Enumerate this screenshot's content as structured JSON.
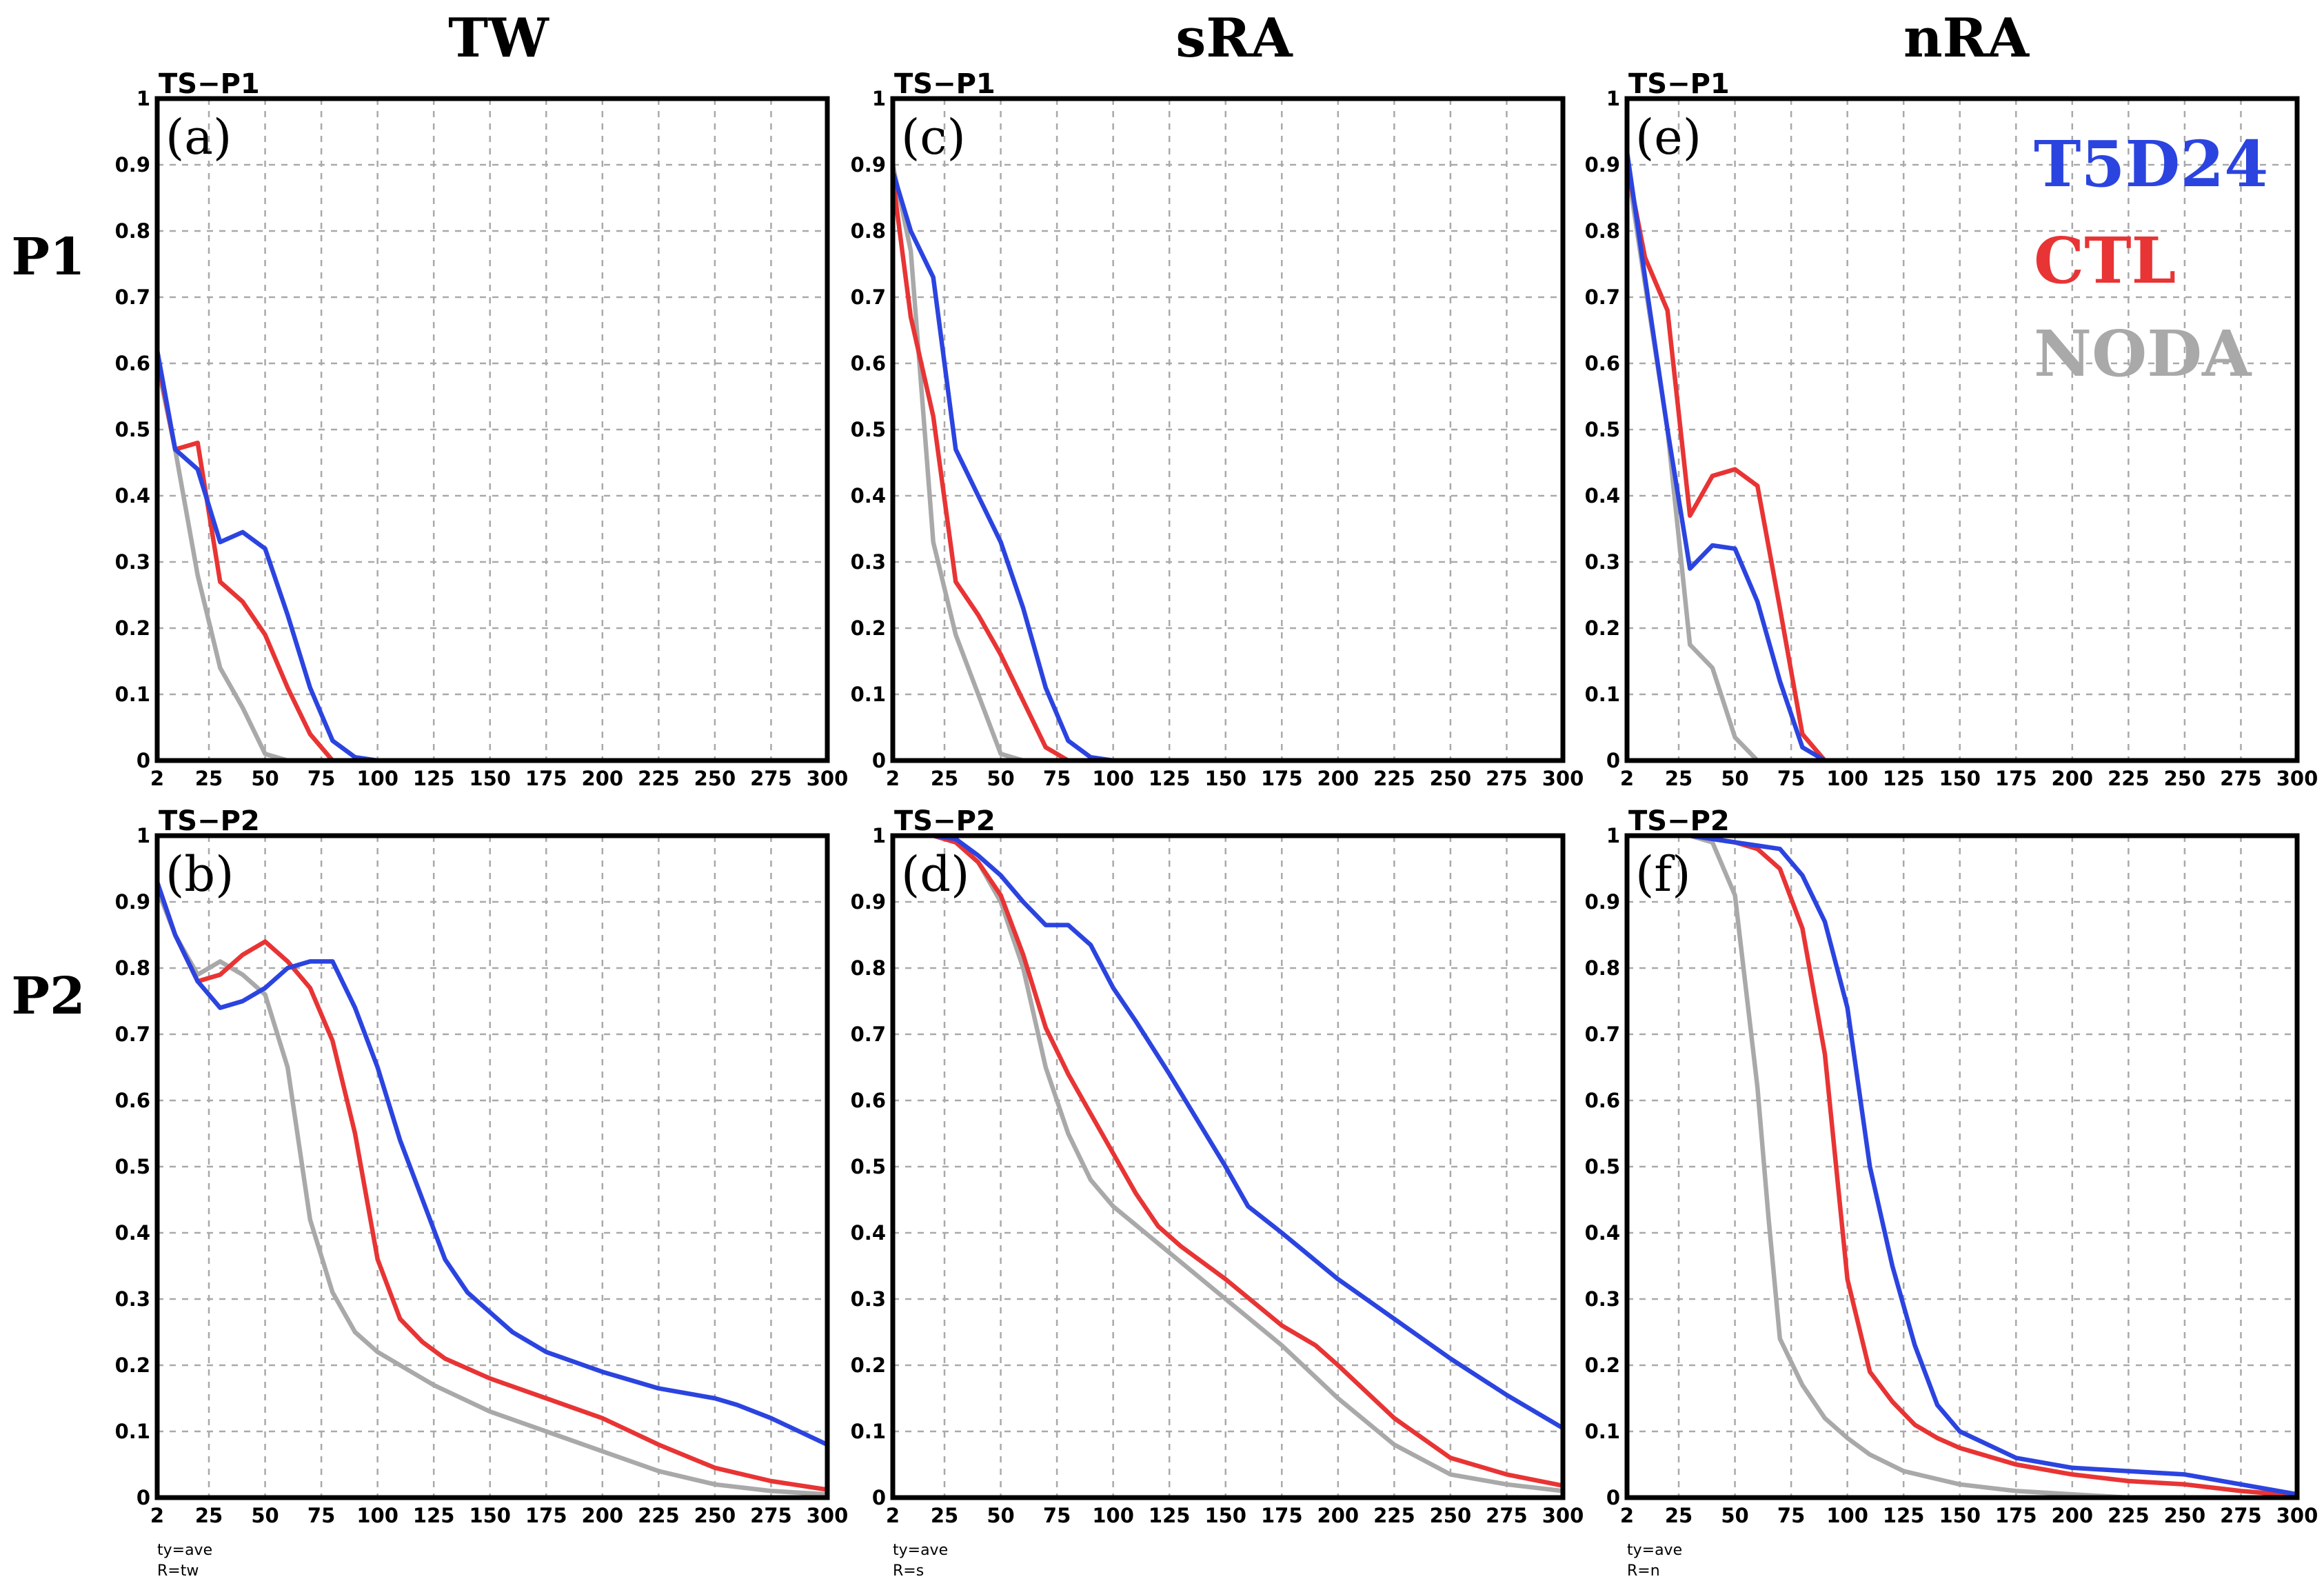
{
  "column_titles": [
    "TW",
    "sRA",
    "nRA"
  ],
  "row_labels": [
    "P1",
    "P2"
  ],
  "legend": {
    "entries": [
      {
        "name": "T5D24",
        "color": "#2b44e0"
      },
      {
        "name": "CTL",
        "color": "#e83434"
      },
      {
        "name": "NODA",
        "color": "#a9a9a9"
      }
    ]
  },
  "footnotes": [
    {
      "line1": "ty=ave",
      "line2": "R=tw"
    },
    {
      "line1": "ty=ave",
      "line2": "R=s"
    },
    {
      "line1": "ty=ave",
      "line2": "R=n"
    }
  ],
  "chart_data": [
    {
      "type": "line",
      "id": "a",
      "label": "(a)",
      "title": "TS−P1",
      "column": "TW",
      "row": "P1",
      "xlim": [
        2,
        300
      ],
      "ylim": [
        0,
        1
      ],
      "xticks": [
        "2",
        "25",
        "50",
        "75",
        "100",
        "125",
        "150",
        "175",
        "200",
        "225",
        "250",
        "275",
        "300"
      ],
      "yticks": [
        "0",
        "0.1",
        "0.2",
        "0.3",
        "0.4",
        "0.5",
        "0.6",
        "0.7",
        "0.8",
        "0.9",
        "1"
      ],
      "series": [
        {
          "name": "NODA",
          "x": [
            2,
            10,
            20,
            30,
            40,
            50,
            60,
            70
          ],
          "y": [
            0.6,
            0.47,
            0.28,
            0.14,
            0.08,
            0.01,
            0,
            0
          ]
        },
        {
          "name": "CTL",
          "x": [
            2,
            10,
            20,
            30,
            40,
            50,
            60,
            70,
            80,
            90,
            100
          ],
          "y": [
            0.61,
            0.47,
            0.48,
            0.27,
            0.24,
            0.19,
            0.11,
            0.04,
            0,
            0,
            0
          ]
        },
        {
          "name": "T5D24",
          "x": [
            2,
            10,
            20,
            30,
            40,
            50,
            60,
            70,
            80,
            90,
            100,
            125,
            150,
            175,
            200
          ],
          "y": [
            0.62,
            0.47,
            0.44,
            0.33,
            0.345,
            0.32,
            0.22,
            0.11,
            0.03,
            0.005,
            0,
            0,
            0,
            0,
            0
          ]
        }
      ]
    },
    {
      "type": "line",
      "id": "b",
      "label": "(b)",
      "title": "TS−P2",
      "column": "TW",
      "row": "P2",
      "xlim": [
        2,
        300
      ],
      "ylim": [
        0,
        1
      ],
      "xticks": [
        "2",
        "25",
        "50",
        "75",
        "100",
        "125",
        "150",
        "175",
        "200",
        "225",
        "250",
        "275",
        "300"
      ],
      "yticks": [
        "0",
        "0.1",
        "0.2",
        "0.3",
        "0.4",
        "0.5",
        "0.6",
        "0.7",
        "0.8",
        "0.9",
        "1"
      ],
      "series": [
        {
          "name": "NODA",
          "x": [
            2,
            10,
            20,
            30,
            40,
            50,
            60,
            70,
            80,
            90,
            100,
            110,
            125,
            150,
            175,
            200,
            225,
            250,
            275,
            300
          ],
          "y": [
            0.92,
            0.85,
            0.79,
            0.81,
            0.79,
            0.76,
            0.65,
            0.42,
            0.31,
            0.25,
            0.22,
            0.2,
            0.17,
            0.13,
            0.1,
            0.07,
            0.04,
            0.02,
            0.01,
            0.005
          ]
        },
        {
          "name": "CTL",
          "x": [
            2,
            10,
            20,
            30,
            40,
            50,
            60,
            70,
            80,
            90,
            100,
            110,
            120,
            130,
            150,
            175,
            200,
            225,
            250,
            275,
            300
          ],
          "y": [
            0.93,
            0.85,
            0.78,
            0.79,
            0.82,
            0.84,
            0.81,
            0.77,
            0.69,
            0.55,
            0.36,
            0.27,
            0.235,
            0.21,
            0.18,
            0.15,
            0.12,
            0.08,
            0.045,
            0.025,
            0.012
          ]
        },
        {
          "name": "T5D24",
          "x": [
            2,
            10,
            20,
            30,
            40,
            50,
            60,
            70,
            80,
            90,
            100,
            110,
            120,
            130,
            140,
            150,
            160,
            175,
            200,
            225,
            250,
            260,
            275,
            300
          ],
          "y": [
            0.93,
            0.85,
            0.78,
            0.74,
            0.75,
            0.77,
            0.8,
            0.81,
            0.81,
            0.74,
            0.65,
            0.54,
            0.45,
            0.36,
            0.31,
            0.28,
            0.25,
            0.22,
            0.19,
            0.165,
            0.15,
            0.14,
            0.12,
            0.08
          ]
        }
      ]
    },
    {
      "type": "line",
      "id": "c",
      "label": "(c)",
      "title": "TS−P1",
      "column": "sRA",
      "row": "P1",
      "xlim": [
        2,
        300
      ],
      "ylim": [
        0,
        1
      ],
      "xticks": [
        "2",
        "25",
        "50",
        "75",
        "100",
        "125",
        "150",
        "175",
        "200",
        "225",
        "250",
        "275",
        "300"
      ],
      "yticks": [
        "0",
        "0.1",
        "0.2",
        "0.3",
        "0.4",
        "0.5",
        "0.6",
        "0.7",
        "0.8",
        "0.9",
        "1"
      ],
      "series": [
        {
          "name": "NODA",
          "x": [
            2,
            10,
            20,
            30,
            40,
            50,
            60,
            70
          ],
          "y": [
            0.9,
            0.77,
            0.33,
            0.19,
            0.1,
            0.01,
            0,
            0
          ]
        },
        {
          "name": "CTL",
          "x": [
            2,
            10,
            20,
            30,
            40,
            50,
            60,
            70,
            80,
            90,
            100
          ],
          "y": [
            0.88,
            0.67,
            0.52,
            0.27,
            0.22,
            0.16,
            0.09,
            0.02,
            0,
            0,
            0
          ]
        },
        {
          "name": "T5D24",
          "x": [
            2,
            10,
            20,
            30,
            40,
            50,
            60,
            70,
            80,
            90,
            100,
            125,
            150,
            175,
            200
          ],
          "y": [
            0.89,
            0.8,
            0.73,
            0.47,
            0.4,
            0.33,
            0.23,
            0.11,
            0.03,
            0.005,
            0,
            0,
            0,
            0,
            0
          ]
        }
      ]
    },
    {
      "type": "line",
      "id": "d",
      "label": "(d)",
      "title": "TS−P2",
      "column": "sRA",
      "row": "P2",
      "xlim": [
        2,
        300
      ],
      "ylim": [
        0,
        1
      ],
      "xticks": [
        "2",
        "25",
        "50",
        "75",
        "100",
        "125",
        "150",
        "175",
        "200",
        "225",
        "250",
        "275",
        "300"
      ],
      "yticks": [
        "0",
        "0.1",
        "0.2",
        "0.3",
        "0.4",
        "0.5",
        "0.6",
        "0.7",
        "0.8",
        "0.9",
        "1"
      ],
      "series": [
        {
          "name": "NODA",
          "x": [
            2,
            10,
            20,
            30,
            40,
            50,
            60,
            70,
            80,
            90,
            100,
            125,
            150,
            175,
            200,
            225,
            250,
            275,
            300
          ],
          "y": [
            1,
            1,
            1,
            0.99,
            0.96,
            0.9,
            0.8,
            0.65,
            0.55,
            0.48,
            0.44,
            0.37,
            0.3,
            0.23,
            0.15,
            0.08,
            0.035,
            0.02,
            0.01
          ]
        },
        {
          "name": "CTL",
          "x": [
            2,
            10,
            20,
            30,
            40,
            50,
            60,
            70,
            80,
            90,
            100,
            110,
            120,
            130,
            150,
            175,
            190,
            200,
            225,
            250,
            275,
            300
          ],
          "y": [
            1,
            1,
            1,
            0.99,
            0.96,
            0.91,
            0.82,
            0.71,
            0.64,
            0.58,
            0.52,
            0.46,
            0.41,
            0.38,
            0.33,
            0.26,
            0.23,
            0.2,
            0.12,
            0.06,
            0.035,
            0.018
          ]
        },
        {
          "name": "T5D24",
          "x": [
            2,
            10,
            20,
            30,
            40,
            50,
            60,
            70,
            80,
            90,
            100,
            110,
            125,
            150,
            160,
            175,
            200,
            225,
            250,
            275,
            300
          ],
          "y": [
            1,
            1,
            1,
            0.995,
            0.97,
            0.94,
            0.9,
            0.865,
            0.865,
            0.835,
            0.77,
            0.72,
            0.64,
            0.5,
            0.44,
            0.4,
            0.33,
            0.27,
            0.21,
            0.155,
            0.105
          ]
        }
      ]
    },
    {
      "type": "line",
      "id": "e",
      "label": "(e)",
      "title": "TS−P1",
      "column": "nRA",
      "row": "P1",
      "xlim": [
        2,
        300
      ],
      "ylim": [
        0,
        1
      ],
      "xticks": [
        "2",
        "25",
        "50",
        "75",
        "100",
        "125",
        "150",
        "175",
        "200",
        "225",
        "250",
        "275",
        "300"
      ],
      "yticks": [
        "0",
        "0.1",
        "0.2",
        "0.3",
        "0.4",
        "0.5",
        "0.6",
        "0.7",
        "0.8",
        "0.9",
        "1"
      ],
      "series": [
        {
          "name": "NODA",
          "x": [
            2,
            10,
            20,
            30,
            40,
            50,
            60,
            70
          ],
          "y": [
            0.9,
            0.72,
            0.5,
            0.175,
            0.14,
            0.035,
            0,
            0
          ]
        },
        {
          "name": "CTL",
          "x": [
            2,
            10,
            20,
            30,
            40,
            50,
            60,
            70,
            80,
            90,
            100
          ],
          "y": [
            0.9,
            0.76,
            0.68,
            0.37,
            0.43,
            0.44,
            0.415,
            0.23,
            0.04,
            0,
            0
          ]
        },
        {
          "name": "T5D24",
          "x": [
            2,
            10,
            20,
            30,
            40,
            50,
            60,
            70,
            80,
            90,
            100,
            125
          ],
          "y": [
            0.92,
            0.73,
            0.5,
            0.29,
            0.325,
            0.32,
            0.24,
            0.12,
            0.02,
            0,
            0,
            0
          ]
        }
      ]
    },
    {
      "type": "line",
      "id": "f",
      "label": "(f)",
      "title": "TS−P2",
      "column": "nRA",
      "row": "P2",
      "xlim": [
        2,
        300
      ],
      "ylim": [
        0,
        1
      ],
      "xticks": [
        "2",
        "25",
        "50",
        "75",
        "100",
        "125",
        "150",
        "175",
        "200",
        "225",
        "250",
        "275",
        "300"
      ],
      "yticks": [
        "0",
        "0.1",
        "0.2",
        "0.3",
        "0.4",
        "0.5",
        "0.6",
        "0.7",
        "0.8",
        "0.9",
        "1"
      ],
      "series": [
        {
          "name": "NODA",
          "x": [
            2,
            10,
            20,
            30,
            40,
            50,
            60,
            65,
            70,
            80,
            90,
            100,
            110,
            125,
            150,
            175,
            200,
            225,
            250,
            300
          ],
          "y": [
            1,
            1,
            1,
            1,
            0.99,
            0.91,
            0.62,
            0.42,
            0.24,
            0.17,
            0.12,
            0.09,
            0.065,
            0.04,
            0.02,
            0.01,
            0.005,
            0,
            0,
            0
          ]
        },
        {
          "name": "CTL",
          "x": [
            2,
            10,
            20,
            30,
            40,
            50,
            60,
            70,
            80,
            90,
            100,
            110,
            120,
            130,
            140,
            150,
            175,
            200,
            225,
            250,
            275,
            300
          ],
          "y": [
            1,
            1,
            1,
            1,
            0.995,
            0.99,
            0.98,
            0.95,
            0.86,
            0.67,
            0.33,
            0.19,
            0.145,
            0.11,
            0.09,
            0.075,
            0.05,
            0.035,
            0.025,
            0.02,
            0.01,
            0.003
          ]
        },
        {
          "name": "T5D24",
          "x": [
            2,
            10,
            20,
            30,
            40,
            50,
            60,
            70,
            80,
            90,
            100,
            110,
            120,
            130,
            140,
            150,
            175,
            200,
            225,
            250,
            275,
            300
          ],
          "y": [
            1,
            1,
            1,
            1,
            0.995,
            0.99,
            0.985,
            0.98,
            0.94,
            0.87,
            0.74,
            0.5,
            0.35,
            0.23,
            0.14,
            0.1,
            0.06,
            0.045,
            0.04,
            0.035,
            0.02,
            0.005
          ]
        }
      ]
    }
  ]
}
